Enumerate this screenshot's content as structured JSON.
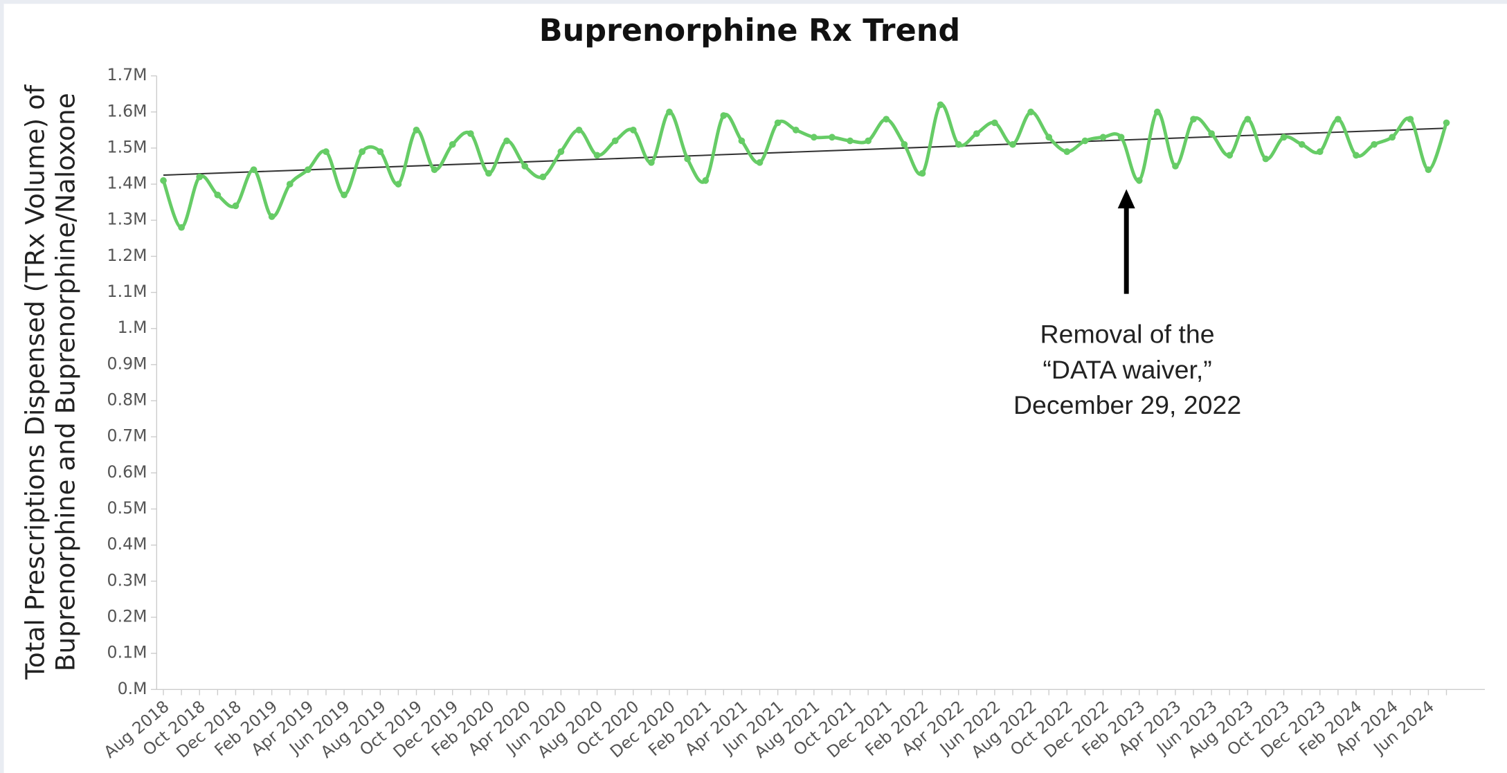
{
  "chart_data": {
    "type": "line",
    "title": "Buprenorphine Rx Trend",
    "ylabel": [
      "Total Prescriptions Dispensed (TRx Volume) of",
      "Buprenorphine and Buprenorphine/Naloxone"
    ],
    "categories": [
      "Aug 2018",
      null,
      "Oct 2018",
      null,
      "Dec 2018",
      null,
      "Feb 2019",
      null,
      "Apr 2019",
      null,
      "Jun 2019",
      null,
      "Aug 2019",
      null,
      "Oct 2019",
      null,
      "Dec 2019",
      null,
      "Feb 2020",
      null,
      "Apr 2020",
      null,
      "Jun 2020",
      null,
      "Aug 2020",
      null,
      "Oct 2020",
      null,
      "Dec 2020",
      null,
      "Feb 2021",
      null,
      "Apr 2021",
      null,
      "Jun 2021",
      null,
      "Aug 2021",
      null,
      "Oct 2021",
      null,
      "Dec 2021",
      null,
      "Feb 2022",
      null,
      "Apr 2022",
      null,
      "Jun 2022",
      null,
      "Aug 2022",
      null,
      "Oct 2022",
      null,
      "Dec 2022",
      null,
      "Feb 2023",
      null,
      "Apr 2023",
      null,
      "Jun 2023",
      null,
      "Aug 2023",
      null,
      "Oct 2023",
      null,
      "Dec 2023",
      null,
      "Feb 2024",
      null,
      "Apr 2024",
      null,
      "Jun 2024",
      null
    ],
    "series": [
      {
        "color": "#66cc66",
        "values": [
          1410000,
          1280000,
          1420000,
          1370000,
          1340000,
          1440000,
          1310000,
          1400000,
          1440000,
          1490000,
          1370000,
          1490000,
          1490000,
          1400000,
          1550000,
          1440000,
          1510000,
          1540000,
          1430000,
          1520000,
          1450000,
          1420000,
          1490000,
          1550000,
          1480000,
          1520000,
          1550000,
          1460000,
          1600000,
          1470000,
          1410000,
          1590000,
          1520000,
          1460000,
          1570000,
          1550000,
          1530000,
          1530000,
          1520000,
          1520000,
          1580000,
          1510000,
          1430000,
          1620000,
          1510000,
          1540000,
          1570000,
          1510000,
          1600000,
          1530000,
          1490000,
          1520000,
          1530000,
          1530000,
          1410000,
          1600000,
          1450000,
          1580000,
          1540000,
          1480000,
          1580000,
          1470000,
          1530000,
          1510000,
          1490000,
          1580000,
          1480000,
          1510000,
          1530000,
          1580000,
          1440000,
          1570000
        ]
      }
    ],
    "trendline": {
      "color": "#333333",
      "start": 1425000,
      "end": 1555000
    },
    "ylim": [
      0,
      1700000
    ],
    "yticks": [
      {
        "value": 0,
        "label": "0.M"
      },
      {
        "value": 100000,
        "label": "0.1M"
      },
      {
        "value": 200000,
        "label": "0.2M"
      },
      {
        "value": 300000,
        "label": "0.3M"
      },
      {
        "value": 400000,
        "label": "0.4M"
      },
      {
        "value": 500000,
        "label": "0.5M"
      },
      {
        "value": 600000,
        "label": "0.6M"
      },
      {
        "value": 700000,
        "label": "0.7M"
      },
      {
        "value": 800000,
        "label": "0.8M"
      },
      {
        "value": 900000,
        "label": "0.9M"
      },
      {
        "value": 1000000,
        "label": "1.M"
      },
      {
        "value": 1100000,
        "label": "1.1M"
      },
      {
        "value": 1200000,
        "label": "1.2M"
      },
      {
        "value": 1300000,
        "label": "1.3M"
      },
      {
        "value": 1400000,
        "label": "1.4M"
      },
      {
        "value": 1500000,
        "label": "1.5M"
      },
      {
        "value": 1600000,
        "label": "1.6M"
      },
      {
        "value": 1700000,
        "label": "1.7M"
      }
    ],
    "grid": false,
    "annotation": {
      "lines": [
        "Removal of the",
        "“DATA waiver,”",
        "December 29, 2022"
      ]
    }
  }
}
